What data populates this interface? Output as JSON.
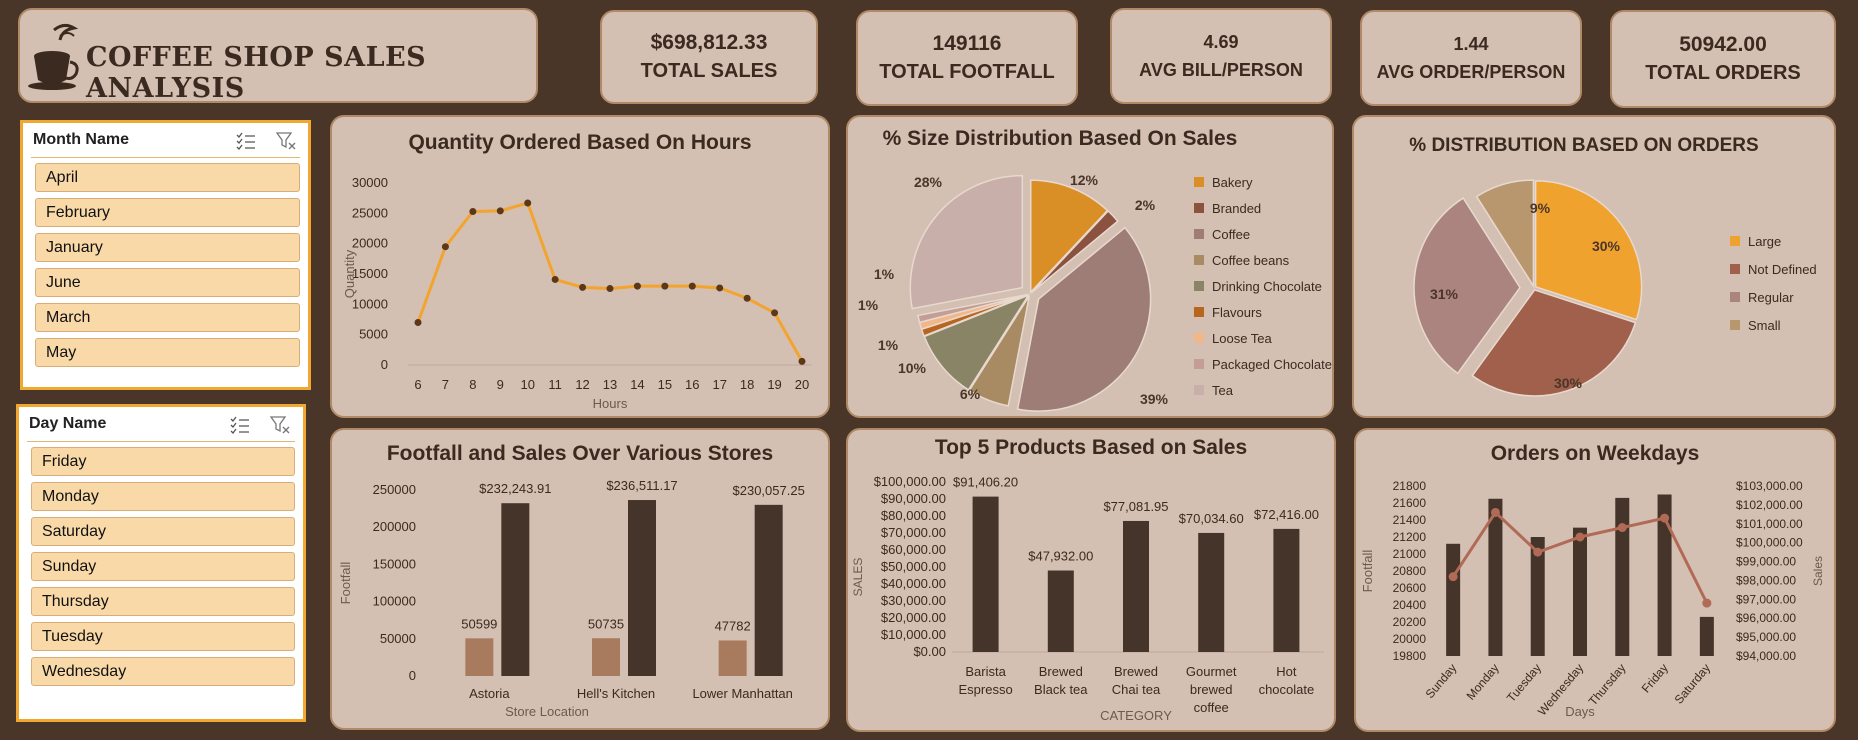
{
  "title": "COFFEE SHOP SALES ANALYSIS",
  "kpis": [
    {
      "value": "$698,812.33",
      "label": "TOTAL SALES"
    },
    {
      "value": "149116",
      "label": "TOTAL FOOTFALL"
    },
    {
      "value": "4.69",
      "label": "AVG BILL/PERSON"
    },
    {
      "value": "1.44",
      "label": "AVG ORDER/PERSON"
    },
    {
      "value": "50942.00",
      "label": "TOTAL ORDERS"
    }
  ],
  "slicers": {
    "month": {
      "header": "Month Name",
      "items": [
        "April",
        "February",
        "January",
        "June",
        "March",
        "May"
      ]
    },
    "day": {
      "header": "Day Name",
      "items": [
        "Friday",
        "Monday",
        "Saturday",
        "Sunday",
        "Thursday",
        "Tuesday",
        "Wednesday"
      ]
    }
  },
  "colors": {
    "background": "#4a3629",
    "panel": "#d4bfb3",
    "accent": "#f2a42e",
    "dark_bar": "#44342a",
    "light_bar": "#a97b5e",
    "line": "#b06a55"
  },
  "chart_data": [
    {
      "type": "line",
      "title": "Quantity Ordered Based On Hours",
      "xlabel": "Hours",
      "ylabel": "Quantity",
      "x": [
        6,
        7,
        8,
        9,
        10,
        11,
        12,
        13,
        14,
        15,
        16,
        17,
        18,
        19,
        20
      ],
      "values": [
        7000,
        19500,
        25300,
        25400,
        26700,
        14100,
        12800,
        12600,
        13000,
        13000,
        13000,
        12700,
        11000,
        8600,
        600
      ],
      "yticks": [
        "0",
        "5000",
        "10000",
        "15000",
        "20000",
        "25000",
        "30000"
      ],
      "ylim": [
        0,
        30000
      ],
      "grid": false
    },
    {
      "type": "pie",
      "title": "% Size Distribution Based On Sales",
      "slices": [
        {
          "label": "Bakery",
          "value": 12,
          "display": "12%",
          "color": "#d98f26"
        },
        {
          "label": "Branded",
          "value": 2,
          "display": "2%",
          "color": "#8c5240"
        },
        {
          "label": "Coffee",
          "value": 39,
          "display": "39%",
          "color": "#9e7d76"
        },
        {
          "label": "Coffee beans",
          "value": 6,
          "display": "6%",
          "color": "#a88a63"
        },
        {
          "label": "Drinking Chocolate",
          "value": 10,
          "display": "10%",
          "color": "#8a8466"
        },
        {
          "label": "Flavours",
          "value": 1,
          "display": "1%",
          "color": "#b8651f"
        },
        {
          "label": "Loose Tea",
          "value": 1,
          "display": "1%",
          "color": "#f0b88a"
        },
        {
          "label": "Packaged Chocolate",
          "value": 1,
          "display": "1%",
          "color": "#c49e96"
        },
        {
          "label": "Tea",
          "value": 28,
          "display": "28%",
          "color": "#c9afa9"
        }
      ],
      "legend": "right"
    },
    {
      "type": "pie",
      "title": "% DISTRIBUTION BASED ON ORDERS",
      "slices": [
        {
          "label": "Large",
          "value": 30,
          "display": "30%",
          "color": "#f0a22f"
        },
        {
          "label": "Not Defined",
          "value": 30,
          "display": "30%",
          "color": "#a0604c"
        },
        {
          "label": "Regular",
          "value": 31,
          "display": "31%",
          "color": "#ab8480"
        },
        {
          "label": "Small",
          "value": 9,
          "display": "9%",
          "color": "#b8976e"
        }
      ],
      "legend": "right"
    },
    {
      "type": "bar",
      "title": "Footfall and Sales Over Various Stores",
      "xlabel": "Store Location",
      "ylabel": "Footfall",
      "categories": [
        "Astoria",
        "Hell's Kitchen",
        "Lower Manhattan"
      ],
      "series": [
        {
          "values": [
            50599,
            50735,
            47782
          ],
          "labels": [
            "50599",
            "50735",
            "47782"
          ],
          "color": "#a97b5e"
        },
        {
          "values": [
            232243.91,
            236511.17,
            230057.25
          ],
          "labels": [
            "$232,243.91",
            "$236,511.17",
            "$230,057.25"
          ],
          "color": "#44342a"
        }
      ],
      "yticks": [
        "0",
        "50000",
        "100000",
        "150000",
        "200000",
        "250000"
      ],
      "ylim": [
        0,
        250000
      ]
    },
    {
      "type": "bar",
      "title": "Top 5 Products Based on Sales",
      "xlabel": "CATEGORY",
      "ylabel": "SALES",
      "categories": [
        [
          "Barista",
          "Espresso"
        ],
        [
          "Brewed",
          "Black tea"
        ],
        [
          "Brewed",
          "Chai tea"
        ],
        [
          "Gourmet",
          "brewed",
          "coffee"
        ],
        [
          "Hot",
          "chocolate"
        ]
      ],
      "values": [
        91406.2,
        47932.0,
        77081.95,
        70034.6,
        72416.0
      ],
      "labels": [
        "$91,406.20",
        "$47,932.00",
        "$77,081.95",
        "$70,034.60",
        "$72,416.00"
      ],
      "yticks": [
        "$0.00",
        "$10,000.00",
        "$20,000.00",
        "$30,000.00",
        "$40,000.00",
        "$50,000.00",
        "$60,000.00",
        "$70,000.00",
        "$80,000.00",
        "$90,000.00",
        "$100,000.00"
      ],
      "ylim": [
        0,
        100000
      ]
    },
    {
      "type": "bar",
      "title": "Orders on Weekdays",
      "xlabel": "Days",
      "ylabel": "Footfall",
      "y2label": "Sales",
      "categories": [
        "Sunday",
        "Monday",
        "Tuesday",
        "Wednesday",
        "Thursday",
        "Friday",
        "Saturday"
      ],
      "footfall": [
        21120,
        21650,
        21200,
        21310,
        21660,
        21700,
        20260
      ],
      "sales": [
        98200,
        101600,
        99500,
        100300,
        100800,
        101300,
        96800
      ],
      "yticks": [
        "19800",
        "20000",
        "20200",
        "20400",
        "20600",
        "20800",
        "21000",
        "21200",
        "21400",
        "21600",
        "21800"
      ],
      "ylim": [
        19800,
        21800
      ],
      "y2ticks": [
        "$94,000.00",
        "$95,000.00",
        "$96,000.00",
        "$97,000.00",
        "$98,000.00",
        "$99,000.00",
        "$100,000.00",
        "$101,000.00",
        "$102,000.00",
        "$103,000.00"
      ],
      "y2lim": [
        94000,
        103000
      ]
    }
  ]
}
